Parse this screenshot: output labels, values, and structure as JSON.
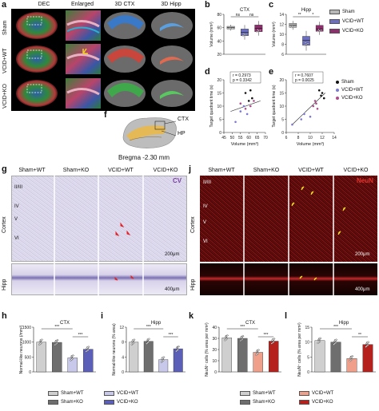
{
  "panel_letters": [
    "a",
    "b",
    "c",
    "d",
    "e",
    "f",
    "g",
    "h",
    "i",
    "j",
    "k",
    "l"
  ],
  "panel_a": {
    "col_headers": [
      "DEC",
      "Enlarged",
      "3D CTX",
      "3D Hipp"
    ],
    "row_labels": [
      "Sham",
      "VCID+WT",
      "VCID+KO"
    ]
  },
  "panel_f": {
    "labels": [
      "CTX",
      "HP"
    ],
    "caption": "Bregma -2.30 mm"
  },
  "panel_g": {
    "col_headers": [
      "Sham+WT",
      "Sham+KO",
      "VCID+WT",
      "VCID+KO"
    ],
    "stain": "CV",
    "layers": [
      "II/III",
      "IV",
      "V",
      "VI"
    ],
    "region_labels": [
      "Cortex",
      "Hipp"
    ],
    "scale_bars": [
      "200μm",
      "400μm"
    ]
  },
  "panel_j": {
    "col_headers": [
      "Sham+WT",
      "Sham+KO",
      "VCID+WT",
      "VCID+KO"
    ],
    "stain": "NeuN",
    "layers": [
      "II/III",
      "IV",
      "V",
      "VI"
    ],
    "region_labels": [
      "Cortex",
      "Hipp"
    ],
    "scale_bars": [
      "200μm",
      "400μm"
    ]
  },
  "legend_bc": {
    "items": [
      {
        "label": "Sham",
        "color": "#b8b8b8"
      },
      {
        "label": "VCID+WT",
        "color": "#6c6fbf"
      },
      {
        "label": "VCID+KO",
        "color": "#8f2d6e"
      }
    ]
  },
  "legend_de": {
    "items": [
      {
        "label": "Sham",
        "color": "#111111"
      },
      {
        "label": "VCID+WT",
        "color": "#7a7ad0"
      },
      {
        "label": "VCID+KO",
        "color": "#b04a8c"
      }
    ]
  },
  "legend_hi": {
    "items": [
      {
        "label": "Sham+WT",
        "color": "#cfcfcf"
      },
      {
        "label": "VCID+WT",
        "color": "#c8c8ea"
      },
      {
        "label": "Sham+KO",
        "color": "#6e6e6e"
      },
      {
        "label": "VCID+KO",
        "color": "#5c5fb8"
      }
    ]
  },
  "legend_kl": {
    "items": [
      {
        "label": "Sham+WT",
        "color": "#cfcfcf"
      },
      {
        "label": "VCID+WT",
        "color": "#f0a08a"
      },
      {
        "label": "Sham+KO",
        "color": "#6e6e6e"
      },
      {
        "label": "VCID+KO",
        "color": "#b5211c"
      }
    ]
  },
  "chart_data": [
    {
      "id": "b",
      "type": "box",
      "title": "CTX",
      "ylabel": "Volume (mm³)",
      "ylim": [
        20,
        80
      ],
      "yticks": [
        20,
        40,
        60,
        80
      ],
      "categories": [
        "Sham",
        "VCID+WT",
        "VCID+KO"
      ],
      "values": [
        60,
        53,
        59
      ],
      "box_low": [
        58,
        48,
        54
      ],
      "box_high": [
        62,
        58,
        64
      ],
      "colors": [
        "#b8b8b8",
        "#6c6fbf",
        "#8f2d6e"
      ],
      "annotations": [
        "ns",
        "ns"
      ]
    },
    {
      "id": "c",
      "type": "box",
      "title": "Hipp",
      "ylabel": "Volume (mm³)",
      "ylim": [
        6,
        14
      ],
      "yticks": [
        6,
        8,
        10,
        12,
        14
      ],
      "categories": [
        "Sham",
        "VCID+WT",
        "VCID+KO"
      ],
      "values": [
        11.8,
        8.8,
        11.1
      ],
      "box_low": [
        11.4,
        7.8,
        10.6
      ],
      "box_high": [
        12.2,
        9.6,
        11.8
      ],
      "colors": [
        "#b8b8b8",
        "#6c6fbf",
        "#8f2d6e"
      ],
      "annotations": [
        "**",
        "*"
      ]
    },
    {
      "id": "d",
      "type": "scatter",
      "title": "CTX",
      "xlabel": "Volume (mm³)",
      "ylabel": "Target quadrant time (s)",
      "xlim": [
        45,
        70
      ],
      "ylim": [
        0,
        20
      ],
      "xticks": [
        45,
        50,
        55,
        60,
        65,
        70
      ],
      "yticks": [
        0,
        5,
        10,
        15,
        20
      ],
      "stats": "r = 0.2973\np = 0.3342",
      "series": [
        {
          "name": "Sham",
          "color": "#111111",
          "points": [
            [
              58,
              15
            ],
            [
              61,
              16
            ],
            [
              62,
              13
            ],
            [
              60,
              12
            ]
          ]
        },
        {
          "name": "VCID+WT",
          "color": "#7a7ad0",
          "points": [
            [
              52,
              4
            ],
            [
              55,
              8
            ],
            [
              57,
              10
            ],
            [
              59,
              7
            ]
          ]
        },
        {
          "name": "VCID+KO",
          "color": "#b04a8c",
          "points": [
            [
              55,
              11
            ],
            [
              58,
              9
            ],
            [
              63,
              12
            ],
            [
              61,
              10
            ]
          ]
        }
      ],
      "fit": [
        [
          49,
          8
        ],
        [
          67,
          12
        ]
      ]
    },
    {
      "id": "e",
      "type": "scatter",
      "title": "Hipp",
      "xlabel": "Volume (mm³)",
      "ylabel": "Target quadrant time (s)",
      "xlim": [
        6,
        14
      ],
      "ylim": [
        0,
        20
      ],
      "xticks": [
        6,
        8,
        10,
        12,
        14
      ],
      "yticks": [
        0,
        5,
        10,
        15,
        20
      ],
      "stats": "r = 0.7607\np = 0.0025",
      "series": [
        {
          "name": "Sham",
          "color": "#111111",
          "points": [
            [
              11.5,
              16
            ],
            [
              12,
              15
            ],
            [
              11.8,
              14
            ],
            [
              12.3,
              13
            ]
          ]
        },
        {
          "name": "VCID+WT",
          "color": "#7a7ad0",
          "points": [
            [
              7,
              3
            ],
            [
              8.5,
              5
            ],
            [
              9,
              7
            ],
            [
              10,
              6
            ]
          ]
        },
        {
          "name": "VCID+KO",
          "color": "#b04a8c",
          "points": [
            [
              10.5,
              10
            ],
            [
              11,
              11
            ],
            [
              11.2,
              9
            ],
            [
              10.8,
              12
            ]
          ]
        }
      ],
      "fit": [
        [
          7,
          3
        ],
        [
          12.5,
          15
        ]
      ]
    },
    {
      "id": "h",
      "type": "bar",
      "title": "CTX",
      "ylabel": "Normal-like neurons (/mm²)",
      "ylim": [
        0,
        1500
      ],
      "yticks": [
        0,
        500,
        1000,
        1500
      ],
      "categories": [
        "Sham+WT",
        "Sham+KO",
        "VCID+WT",
        "VCID+KO"
      ],
      "values": [
        1000,
        990,
        470,
        760
      ],
      "colors": [
        "#cfcfcf",
        "#6e6e6e",
        "#c8c8ea",
        "#5c5fb8"
      ],
      "annotations": [
        "***",
        "***"
      ]
    },
    {
      "id": "i",
      "type": "bar",
      "title": "Hipp",
      "ylabel": "Normal-like neurons (% area)",
      "ylim": [
        0,
        12
      ],
      "yticks": [
        0,
        4,
        8,
        12
      ],
      "categories": [
        "Sham+WT",
        "Sham+KO",
        "VCID+WT",
        "VCID+KO"
      ],
      "values": [
        8,
        8.2,
        3.3,
        6.2
      ],
      "colors": [
        "#cfcfcf",
        "#6e6e6e",
        "#c8c8ea",
        "#5c5fb8"
      ],
      "annotations": [
        "***",
        "***"
      ]
    },
    {
      "id": "k",
      "type": "bar",
      "title": "CTX",
      "ylabel": "NeuN⁺ cells (% area per mm²)",
      "ylim": [
        0,
        40
      ],
      "yticks": [
        0,
        10,
        20,
        30,
        40
      ],
      "categories": [
        "Sham+WT",
        "Sham+KO",
        "VCID+WT",
        "VCID+KO"
      ],
      "values": [
        30.5,
        30,
        17.5,
        27.5
      ],
      "colors": [
        "#cfcfcf",
        "#6e6e6e",
        "#f0a08a",
        "#b5211c"
      ],
      "annotations": [
        "***",
        "***"
      ]
    },
    {
      "id": "l",
      "type": "bar",
      "title": "Hipp",
      "ylabel": "NeuN⁺ cells (% area per mm²)",
      "ylim": [
        0,
        15
      ],
      "yticks": [
        0,
        5,
        10,
        15
      ],
      "categories": [
        "Sham+WT",
        "Sham+KO",
        "VCID+WT",
        "VCID+KO"
      ],
      "values": [
        10.5,
        10,
        4.5,
        9.2
      ],
      "colors": [
        "#cfcfcf",
        "#6e6e6e",
        "#f0a08a",
        "#b5211c"
      ],
      "annotations": [
        "***",
        "**"
      ]
    }
  ]
}
